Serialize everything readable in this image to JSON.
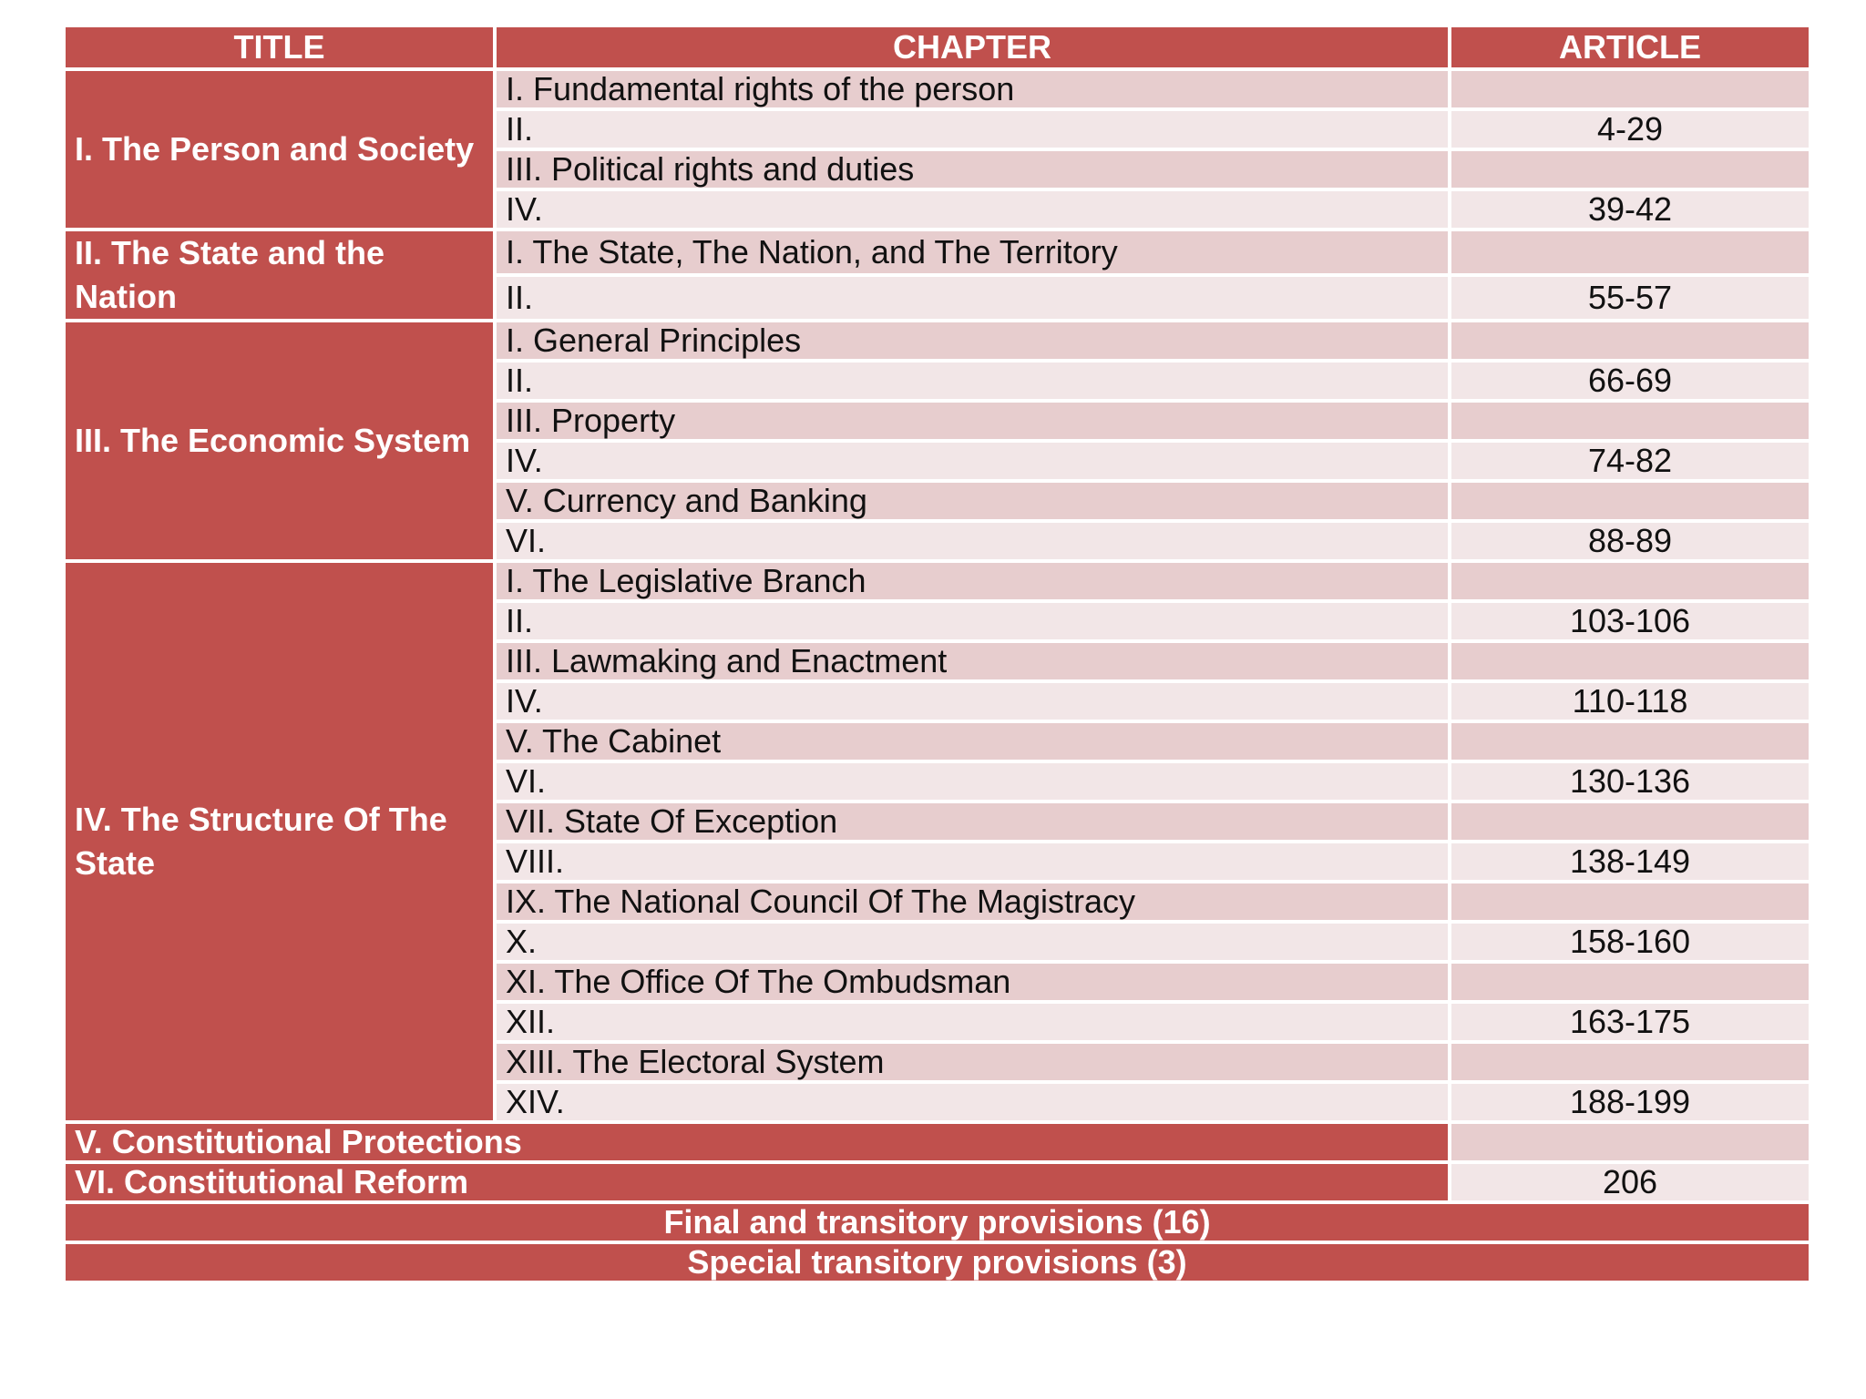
{
  "headers": {
    "title": "TITLE",
    "chapter": "CHAPTER",
    "article": "ARTICLE"
  },
  "titles": [
    {
      "label": "I. The Person and Society",
      "chapters": [
        {
          "name": "I. Fundamental rights of the person",
          "article": ""
        },
        {
          "name": "II.",
          "article": "4-29"
        },
        {
          "name": "III. Political rights and duties",
          "article": ""
        },
        {
          "name": "IV.",
          "article": "39-42"
        }
      ]
    },
    {
      "label": "II. The State and the Nation",
      "chapters": [
        {
          "name": "I. The State, The Nation, and The Territory",
          "article": ""
        },
        {
          "name": "II.",
          "article": "55-57"
        }
      ]
    },
    {
      "label": "III. The Economic System",
      "chapters": [
        {
          "name": "I. General Principles",
          "article": ""
        },
        {
          "name": "II.",
          "article": "66-69"
        },
        {
          "name": "III. Property",
          "article": ""
        },
        {
          "name": "IV.",
          "article": "74-82"
        },
        {
          "name": "V. Currency and Banking",
          "article": ""
        },
        {
          "name": "VI.",
          "article": "88-89"
        }
      ]
    },
    {
      "label": "IV. The Structure Of The State",
      "chapters": [
        {
          "name": "I. The Legislative Branch",
          "article": ""
        },
        {
          "name": "II.",
          "article": "103-106"
        },
        {
          "name": "III. Lawmaking and Enactment",
          "article": ""
        },
        {
          "name": "IV.",
          "article": "110-118"
        },
        {
          "name": "V. The Cabinet",
          "article": ""
        },
        {
          "name": "VI.",
          "article": "130-136"
        },
        {
          "name": "VII. State Of Exception",
          "article": ""
        },
        {
          "name": "VIII.",
          "article": "138-149"
        },
        {
          "name": "IX. The National Council Of The Magistracy",
          "article": ""
        },
        {
          "name": "X.",
          "article": "158-160"
        },
        {
          "name": "XI. The Office Of The Ombudsman",
          "article": ""
        },
        {
          "name": "XII.",
          "article": "163-175"
        },
        {
          "name": "XIII. The Electoral System",
          "article": ""
        },
        {
          "name": "XIV.",
          "article": "188-199"
        }
      ]
    }
  ],
  "extra_titles": [
    {
      "label": "V. Constitutional Protections",
      "article": ""
    },
    {
      "label": "VI. Constitutional Reform",
      "article": "206"
    }
  ],
  "banners": [
    "Final and transitory provisions (16)",
    "Special transitory provisions (3)"
  ],
  "colors": {
    "header": "#c0504d",
    "row_odd": "#e7cdce",
    "row_even": "#f2e6e7",
    "title_text": "#ffffff"
  }
}
